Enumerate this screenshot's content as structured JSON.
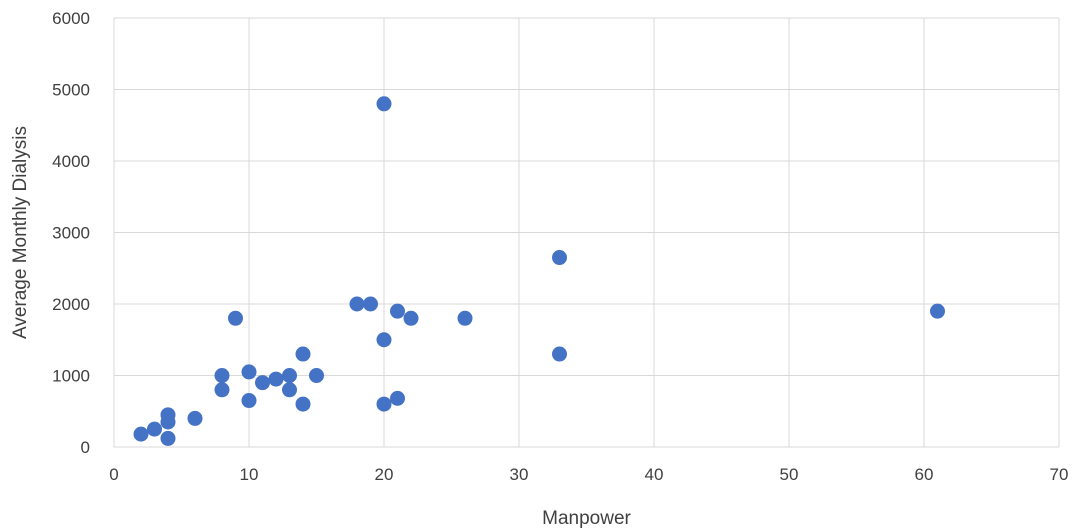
{
  "chart_data": {
    "type": "scatter",
    "title": "",
    "xlabel": "Manpower",
    "ylabel": "Average Monthly Dialysis",
    "xlim": [
      0,
      70
    ],
    "ylim": [
      0,
      6000
    ],
    "x_ticks": [
      0,
      10,
      20,
      30,
      40,
      50,
      60,
      70
    ],
    "y_ticks": [
      0,
      1000,
      2000,
      3000,
      4000,
      5000,
      6000
    ],
    "grid": true,
    "point_color": "#4472c4",
    "grid_color": "#d9d9d9",
    "points": [
      {
        "x": 2,
        "y": 180
      },
      {
        "x": 3,
        "y": 250
      },
      {
        "x": 4,
        "y": 120
      },
      {
        "x": 4,
        "y": 350
      },
      {
        "x": 4,
        "y": 450
      },
      {
        "x": 6,
        "y": 400
      },
      {
        "x": 8,
        "y": 800
      },
      {
        "x": 8,
        "y": 1000
      },
      {
        "x": 9,
        "y": 1800
      },
      {
        "x": 10,
        "y": 650
      },
      {
        "x": 10,
        "y": 1050
      },
      {
        "x": 11,
        "y": 900
      },
      {
        "x": 12,
        "y": 950
      },
      {
        "x": 13,
        "y": 800
      },
      {
        "x": 13,
        "y": 1000
      },
      {
        "x": 14,
        "y": 600
      },
      {
        "x": 14,
        "y": 1300
      },
      {
        "x": 15,
        "y": 1000
      },
      {
        "x": 18,
        "y": 2000
      },
      {
        "x": 19,
        "y": 2000
      },
      {
        "x": 20,
        "y": 600
      },
      {
        "x": 20,
        "y": 1500
      },
      {
        "x": 20,
        "y": 4800
      },
      {
        "x": 21,
        "y": 680
      },
      {
        "x": 21,
        "y": 1900
      },
      {
        "x": 22,
        "y": 1800
      },
      {
        "x": 26,
        "y": 1800
      },
      {
        "x": 33,
        "y": 1300
      },
      {
        "x": 33,
        "y": 2650
      },
      {
        "x": 61,
        "y": 1900
      }
    ]
  }
}
